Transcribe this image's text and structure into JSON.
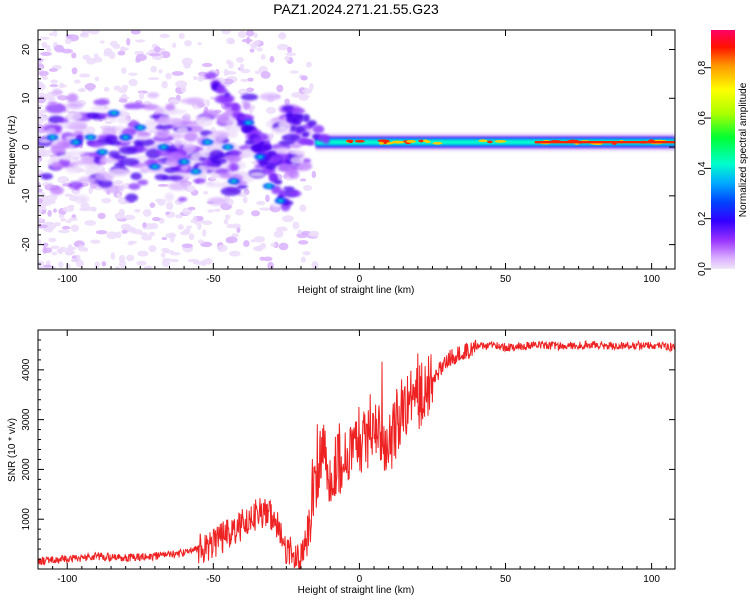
{
  "figure": {
    "title": "PAZ1.2024.271.21.55.G23"
  },
  "chart_data": [
    {
      "type": "heatmap",
      "title": "PAZ1.2024.271.21.55.G23",
      "xlabel": "Height of straight line (km)",
      "ylabel": "Frequency (Hz)",
      "xlim": [
        -110,
        108
      ],
      "ylim": [
        -25,
        24
      ],
      "xticks": [
        -100,
        -50,
        0,
        50,
        100
      ],
      "yticks": [
        -20,
        -10,
        0,
        10,
        20
      ],
      "colorbar": {
        "label": "Normalized spectral amplitude",
        "range": [
          0,
          0.95
        ],
        "ticks": [
          0.0,
          0.2,
          0.4,
          0.6,
          0.8
        ],
        "colors": [
          "#f0e6fa",
          "#cc66ff",
          "#6600ff",
          "#0000ff",
          "#00aaff",
          "#00ffcc",
          "#00ff00",
          "#aaff00",
          "#ffff00",
          "#ffaa00",
          "#ff0000",
          "#ff0066"
        ]
      },
      "features": {
        "stable_band": {
          "x_range": [
            -15,
            108
          ],
          "center_frequency": 1,
          "description_values": [
            0.9,
            0.7,
            0.3
          ]
        },
        "scattered_region": {
          "x_range": [
            -110,
            -18
          ],
          "frequency_range": [
            -25,
            24
          ]
        }
      }
    },
    {
      "type": "line",
      "xlabel": "Height of straight line (km)",
      "ylabel": "SNR (10 * v/v)",
      "xlim": [
        -110,
        108
      ],
      "ylim": [
        0,
        4800
      ],
      "xticks": [
        -100,
        -50,
        0,
        50,
        100
      ],
      "yticks": [
        1000,
        2000,
        3000,
        4000
      ],
      "line_color": "#ee2222",
      "series": [
        {
          "x": [
            -110,
            -100,
            -90,
            -80,
            -70,
            -60,
            -50,
            -45,
            -40,
            -35,
            -30,
            -25,
            -20,
            -18,
            -15,
            -12,
            -10,
            -5,
            0,
            5,
            10,
            15,
            20,
            25,
            30,
            35,
            40,
            45,
            50,
            60,
            70,
            80,
            90,
            100,
            108
          ],
          "values": [
            150,
            200,
            250,
            230,
            260,
            320,
            500,
            700,
            900,
            1100,
            1100,
            400,
            200,
            700,
            1600,
            2400,
            1900,
            2200,
            2500,
            3000,
            2400,
            3300,
            3400,
            3800,
            4200,
            4350,
            4450,
            4500,
            4450,
            4500,
            4480,
            4500,
            4480,
            4500,
            4450
          ]
        }
      ]
    }
  ]
}
